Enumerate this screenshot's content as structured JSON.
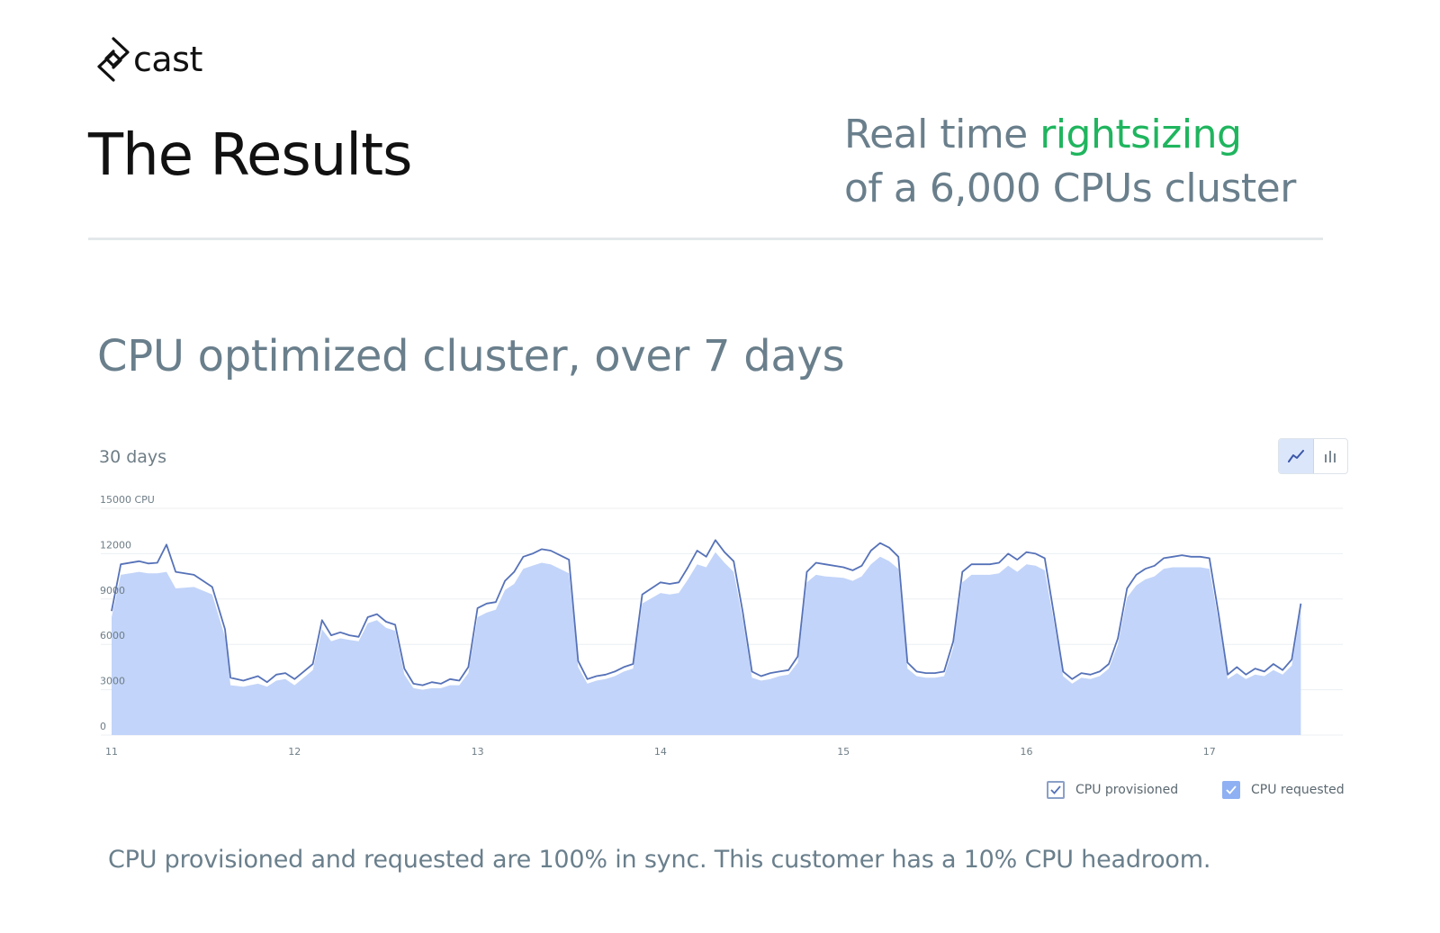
{
  "brand": {
    "logo_text": "cast",
    "logo_icon": "cast-logo-icon"
  },
  "headline": "The Results",
  "tagline": {
    "part1": "Real time ",
    "accent": "rightsizing",
    "line2": "of a 6,000 CPUs cluster"
  },
  "subtitle": "CPU optimized cluster, over 7 days",
  "period_label": "30 days",
  "view_toggle": {
    "line_icon": "line-chart-icon",
    "bar_icon": "bar-chart-icon",
    "active": "line"
  },
  "chart_data": {
    "type": "area",
    "ylabel": "CPU",
    "ylim": [
      0,
      15000
    ],
    "yticks": [
      {
        "value": 0,
        "label": "0"
      },
      {
        "value": 3000,
        "label": "3000"
      },
      {
        "value": 6000,
        "label": "6000"
      },
      {
        "value": 9000,
        "label": "9000"
      },
      {
        "value": 12000,
        "label": "12000"
      },
      {
        "value": 15000,
        "label": "15000 CPU"
      }
    ],
    "xlim": [
      11,
      17.67
    ],
    "xticks": [
      "11",
      "12",
      "13",
      "14",
      "15",
      "16",
      "17"
    ],
    "series": [
      {
        "name": "CPU provisioned",
        "color": "#5672b8",
        "points": [
          [
            11,
            8200
          ],
          [
            11.05,
            11300
          ],
          [
            11.15,
            11500
          ],
          [
            11.2,
            11350
          ],
          [
            11.25,
            11400
          ],
          [
            11.3,
            12600
          ],
          [
            11.35,
            10800
          ],
          [
            11.45,
            10600
          ],
          [
            11.55,
            9800
          ],
          [
            11.62,
            7000
          ],
          [
            11.65,
            3800
          ],
          [
            11.72,
            3600
          ],
          [
            11.8,
            3900
          ],
          [
            11.85,
            3500
          ],
          [
            11.9,
            4000
          ],
          [
            11.95,
            4100
          ],
          [
            12.0,
            3700
          ],
          [
            12.05,
            4200
          ],
          [
            12.1,
            4700
          ],
          [
            12.15,
            7600
          ],
          [
            12.2,
            6600
          ],
          [
            12.25,
            6800
          ],
          [
            12.3,
            6600
          ],
          [
            12.35,
            6500
          ],
          [
            12.4,
            7800
          ],
          [
            12.45,
            8000
          ],
          [
            12.5,
            7500
          ],
          [
            12.55,
            7300
          ],
          [
            12.6,
            4400
          ],
          [
            12.65,
            3400
          ],
          [
            12.7,
            3300
          ],
          [
            12.75,
            3500
          ],
          [
            12.8,
            3400
          ],
          [
            12.85,
            3700
          ],
          [
            12.9,
            3600
          ],
          [
            12.95,
            4500
          ],
          [
            13.0,
            8400
          ],
          [
            13.05,
            8700
          ],
          [
            13.1,
            8800
          ],
          [
            13.15,
            10200
          ],
          [
            13.2,
            10800
          ],
          [
            13.25,
            11800
          ],
          [
            13.3,
            12000
          ],
          [
            13.35,
            12300
          ],
          [
            13.4,
            12200
          ],
          [
            13.45,
            11900
          ],
          [
            13.5,
            11600
          ],
          [
            13.55,
            4900
          ],
          [
            13.6,
            3700
          ],
          [
            13.65,
            3900
          ],
          [
            13.7,
            4000
          ],
          [
            13.75,
            4200
          ],
          [
            13.8,
            4500
          ],
          [
            13.85,
            4700
          ],
          [
            13.9,
            9300
          ],
          [
            14.0,
            10100
          ],
          [
            14.05,
            10000
          ],
          [
            14.1,
            10100
          ],
          [
            14.15,
            11100
          ],
          [
            14.2,
            12200
          ],
          [
            14.25,
            11800
          ],
          [
            14.3,
            12900
          ],
          [
            14.35,
            12100
          ],
          [
            14.4,
            11500
          ],
          [
            14.45,
            8100
          ],
          [
            14.5,
            4200
          ],
          [
            14.55,
            3900
          ],
          [
            14.6,
            4100
          ],
          [
            14.65,
            4200
          ],
          [
            14.7,
            4300
          ],
          [
            14.75,
            5200
          ],
          [
            14.8,
            10800
          ],
          [
            14.85,
            11400
          ],
          [
            14.9,
            11300
          ],
          [
            15.0,
            11100
          ],
          [
            15.05,
            10900
          ],
          [
            15.1,
            11200
          ],
          [
            15.15,
            12200
          ],
          [
            15.2,
            12700
          ],
          [
            15.25,
            12400
          ],
          [
            15.3,
            11800
          ],
          [
            15.35,
            4800
          ],
          [
            15.4,
            4200
          ],
          [
            15.45,
            4100
          ],
          [
            15.5,
            4100
          ],
          [
            15.55,
            4200
          ],
          [
            15.6,
            6200
          ],
          [
            15.65,
            10800
          ],
          [
            15.7,
            11300
          ],
          [
            15.8,
            11300
          ],
          [
            15.85,
            11400
          ],
          [
            15.9,
            12000
          ],
          [
            15.95,
            11600
          ],
          [
            16.0,
            12100
          ],
          [
            16.05,
            12000
          ],
          [
            16.1,
            11700
          ],
          [
            16.15,
            8000
          ],
          [
            16.2,
            4200
          ],
          [
            16.25,
            3700
          ],
          [
            16.3,
            4100
          ],
          [
            16.35,
            4000
          ],
          [
            16.4,
            4200
          ],
          [
            16.45,
            4700
          ],
          [
            16.5,
            6400
          ],
          [
            16.55,
            9700
          ],
          [
            16.6,
            10600
          ],
          [
            16.65,
            11000
          ],
          [
            16.7,
            11200
          ],
          [
            16.75,
            11700
          ],
          [
            16.8,
            11800
          ],
          [
            16.85,
            11900
          ],
          [
            16.9,
            11800
          ],
          [
            16.95,
            11800
          ],
          [
            17.0,
            11700
          ],
          [
            17.05,
            8000
          ],
          [
            17.1,
            4000
          ],
          [
            17.15,
            4500
          ],
          [
            17.2,
            4000
          ],
          [
            17.25,
            4400
          ],
          [
            17.3,
            4200
          ],
          [
            17.35,
            4700
          ],
          [
            17.4,
            4300
          ],
          [
            17.45,
            5000
          ],
          [
            17.5,
            8700
          ]
        ]
      },
      {
        "name": "CPU requested",
        "color": "#c2d4f9",
        "points": [
          [
            11,
            7800
          ],
          [
            11.05,
            10600
          ],
          [
            11.15,
            10800
          ],
          [
            11.2,
            10700
          ],
          [
            11.25,
            10700
          ],
          [
            11.3,
            10800
          ],
          [
            11.35,
            9700
          ],
          [
            11.45,
            9800
          ],
          [
            11.55,
            9300
          ],
          [
            11.62,
            6500
          ],
          [
            11.65,
            3300
          ],
          [
            11.72,
            3200
          ],
          [
            11.8,
            3400
          ],
          [
            11.85,
            3200
          ],
          [
            11.9,
            3600
          ],
          [
            11.95,
            3700
          ],
          [
            12.0,
            3300
          ],
          [
            12.05,
            3800
          ],
          [
            12.1,
            4300
          ],
          [
            12.15,
            7000
          ],
          [
            12.2,
            6200
          ],
          [
            12.25,
            6400
          ],
          [
            12.3,
            6300
          ],
          [
            12.35,
            6200
          ],
          [
            12.4,
            7400
          ],
          [
            12.45,
            7600
          ],
          [
            12.5,
            7100
          ],
          [
            12.55,
            6900
          ],
          [
            12.6,
            4000
          ],
          [
            12.65,
            3100
          ],
          [
            12.7,
            3000
          ],
          [
            12.75,
            3100
          ],
          [
            12.8,
            3100
          ],
          [
            12.85,
            3300
          ],
          [
            12.9,
            3300
          ],
          [
            12.95,
            4100
          ],
          [
            13.0,
            7800
          ],
          [
            13.05,
            8100
          ],
          [
            13.1,
            8300
          ],
          [
            13.15,
            9600
          ],
          [
            13.2,
            10000
          ],
          [
            13.25,
            11000
          ],
          [
            13.3,
            11200
          ],
          [
            13.35,
            11400
          ],
          [
            13.4,
            11300
          ],
          [
            13.45,
            11000
          ],
          [
            13.5,
            10700
          ],
          [
            13.55,
            4500
          ],
          [
            13.6,
            3400
          ],
          [
            13.65,
            3600
          ],
          [
            13.7,
            3700
          ],
          [
            13.75,
            3900
          ],
          [
            13.8,
            4200
          ],
          [
            13.85,
            4400
          ],
          [
            13.9,
            8700
          ],
          [
            14.0,
            9400
          ],
          [
            14.05,
            9300
          ],
          [
            14.1,
            9400
          ],
          [
            14.15,
            10300
          ],
          [
            14.2,
            11300
          ],
          [
            14.25,
            11100
          ],
          [
            14.3,
            12100
          ],
          [
            14.35,
            11400
          ],
          [
            14.4,
            10800
          ],
          [
            14.45,
            7600
          ],
          [
            14.5,
            3800
          ],
          [
            14.55,
            3600
          ],
          [
            14.6,
            3700
          ],
          [
            14.65,
            3900
          ],
          [
            14.7,
            4000
          ],
          [
            14.75,
            4800
          ],
          [
            14.8,
            10100
          ],
          [
            14.85,
            10600
          ],
          [
            14.9,
            10500
          ],
          [
            15.0,
            10400
          ],
          [
            15.05,
            10200
          ],
          [
            15.1,
            10500
          ],
          [
            15.15,
            11300
          ],
          [
            15.2,
            11800
          ],
          [
            15.25,
            11500
          ],
          [
            15.3,
            11000
          ],
          [
            15.35,
            4400
          ],
          [
            15.4,
            3900
          ],
          [
            15.45,
            3800
          ],
          [
            15.5,
            3800
          ],
          [
            15.55,
            3900
          ],
          [
            15.6,
            5800
          ],
          [
            15.65,
            10100
          ],
          [
            15.7,
            10600
          ],
          [
            15.8,
            10600
          ],
          [
            15.85,
            10700
          ],
          [
            15.9,
            11200
          ],
          [
            15.95,
            10800
          ],
          [
            16.0,
            11300
          ],
          [
            16.05,
            11200
          ],
          [
            16.1,
            10900
          ],
          [
            16.15,
            7500
          ],
          [
            16.2,
            3900
          ],
          [
            16.25,
            3400
          ],
          [
            16.3,
            3800
          ],
          [
            16.35,
            3700
          ],
          [
            16.4,
            3900
          ],
          [
            16.45,
            4400
          ],
          [
            16.5,
            6000
          ],
          [
            16.55,
            9100
          ],
          [
            16.6,
            9900
          ],
          [
            16.65,
            10300
          ],
          [
            16.7,
            10500
          ],
          [
            16.75,
            11000
          ],
          [
            16.8,
            11100
          ],
          [
            16.85,
            11100
          ],
          [
            16.9,
            11100
          ],
          [
            16.95,
            11100
          ],
          [
            17.0,
            11000
          ],
          [
            17.05,
            7500
          ],
          [
            17.1,
            3700
          ],
          [
            17.15,
            4100
          ],
          [
            17.2,
            3700
          ],
          [
            17.25,
            4000
          ],
          [
            17.3,
            3900
          ],
          [
            17.35,
            4300
          ],
          [
            17.4,
            4000
          ],
          [
            17.45,
            4600
          ],
          [
            17.5,
            8300
          ]
        ]
      }
    ],
    "grid": true,
    "legend": "bottom-right"
  },
  "legend": {
    "provisioned": "CPU provisioned",
    "requested": "CPU requested",
    "check_icon": "checkmark-icon"
  },
  "footer_note": "CPU provisioned and requested are 100% in sync. This customer has a 10% CPU headroom."
}
